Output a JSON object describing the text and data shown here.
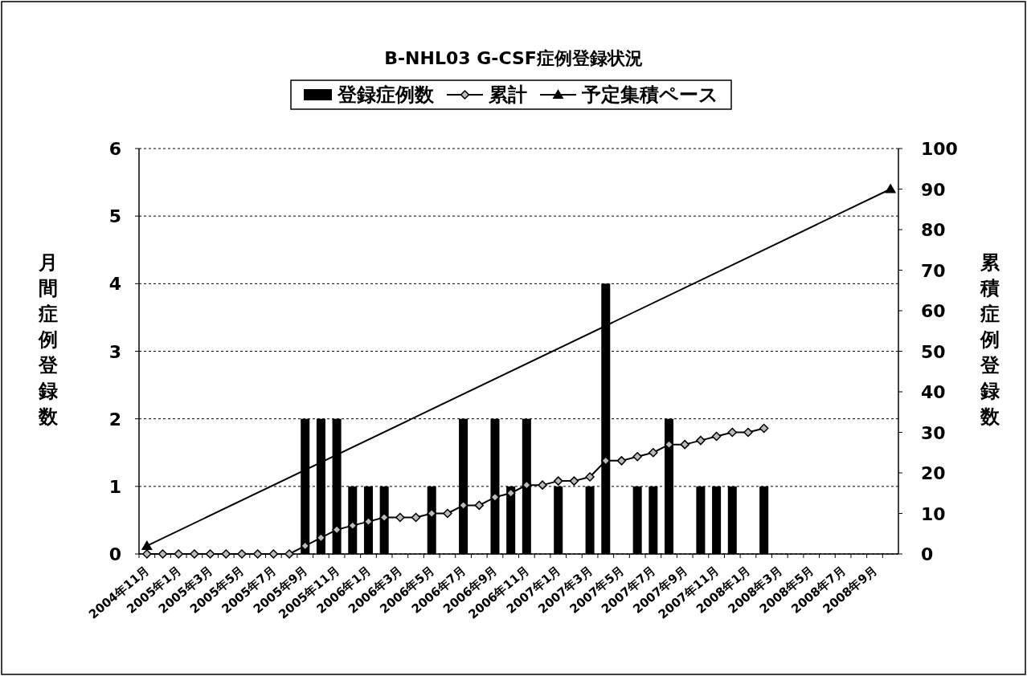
{
  "chart_data": {
    "type": "bar",
    "title": "B-NHL03 G-CSF症例登録状況",
    "ylabel": "月間症例登録数",
    "y2label": "累積症例登録数",
    "categories": [
      "2004年11月",
      null,
      "2005年1月",
      null,
      "2005年3月",
      null,
      "2005年5月",
      null,
      "2005年7月",
      null,
      "2005年9月",
      null,
      "2005年11月",
      null,
      "2006年1月",
      null,
      "2006年3月",
      null,
      "2006年5月",
      null,
      "2006年7月",
      null,
      "2006年9月",
      null,
      "2006年11月",
      null,
      "2007年1月",
      null,
      "2007年3月",
      null,
      "2007年5月",
      null,
      "2007年7月",
      null,
      "2007年9月",
      null,
      "2007年11月",
      null,
      "2008年1月",
      null,
      "2008年3月",
      null,
      "2008年5月",
      null,
      "2008年7月",
      null,
      "2008年9月",
      null
    ],
    "series": [
      {
        "name": "登録症例数",
        "color": "#000000",
        "values": [
          0,
          0,
          0,
          0,
          0,
          0,
          0,
          0,
          0,
          0,
          2,
          2,
          2,
          1,
          1,
          1,
          0,
          0,
          1,
          0,
          2,
          0,
          2,
          1,
          2,
          0,
          1,
          0,
          1,
          4,
          0,
          1,
          1,
          2,
          0,
          1,
          1,
          1,
          0,
          1,
          null,
          null,
          null,
          null,
          null,
          null,
          null,
          null
        ]
      },
      {
        "name": "累計",
        "type": "line",
        "axis": "y2",
        "color": "#000000",
        "marker": "diamond",
        "values": [
          0,
          0,
          0,
          0,
          0,
          0,
          0,
          0,
          0,
          0,
          2,
          4,
          6,
          7,
          8,
          9,
          9,
          9,
          10,
          10,
          12,
          12,
          14,
          15,
          17,
          17,
          18,
          18,
          19,
          23,
          23,
          24,
          25,
          27,
          27,
          28,
          29,
          30,
          30,
          31,
          null,
          null,
          null,
          null,
          null,
          null,
          null,
          null
        ]
      },
      {
        "name": "予定集積ペース",
        "type": "line",
        "axis": "y2",
        "color": "#000000",
        "marker": "triangle",
        "values": [
          2,
          null,
          null,
          null,
          null,
          null,
          null,
          null,
          null,
          null,
          null,
          null,
          null,
          null,
          null,
          null,
          null,
          null,
          null,
          null,
          null,
          null,
          null,
          null,
          null,
          null,
          null,
          null,
          null,
          null,
          null,
          null,
          null,
          null,
          null,
          null,
          null,
          null,
          null,
          null,
          null,
          null,
          null,
          null,
          null,
          null,
          null,
          90
        ]
      }
    ],
    "ylim": [
      0,
      6
    ],
    "yticks": [
      0,
      1,
      2,
      3,
      4,
      5,
      6
    ],
    "y2lim": [
      0,
      100
    ],
    "y2ticks": [
      0,
      10,
      20,
      30,
      40,
      50,
      60,
      70,
      80,
      90,
      100
    ],
    "grid": "y",
    "legend": "top"
  }
}
